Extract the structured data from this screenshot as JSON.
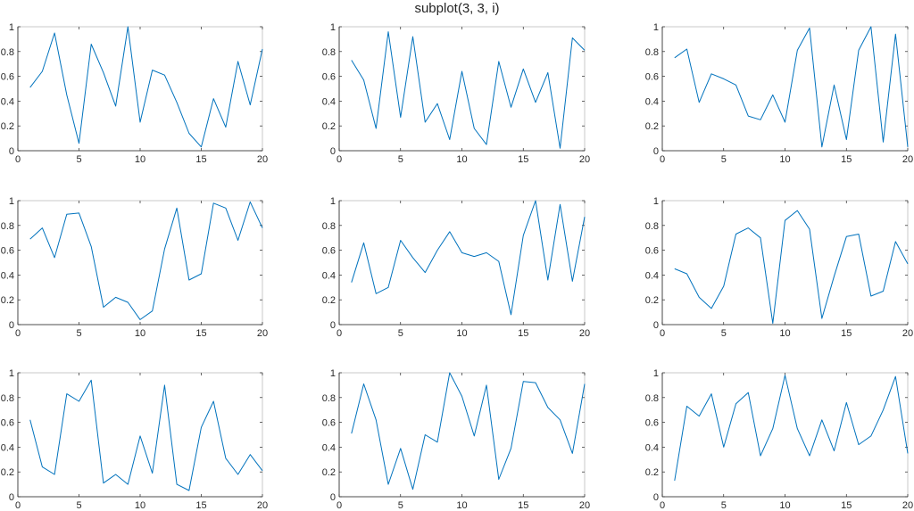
{
  "figure": {
    "title": "subplot(3, 3, i)",
    "line_color": "#0072BD",
    "axes_color": "#262626",
    "background": "#ffffff"
  },
  "chart_data": [
    {
      "type": "line",
      "title": "",
      "position": [
        1,
        1
      ],
      "xlabel": "",
      "ylabel": "",
      "xlim": [
        0,
        20
      ],
      "ylim": [
        0,
        1
      ],
      "xticks": [
        0,
        5,
        10,
        15,
        20
      ],
      "yticks": [
        0,
        0.2,
        0.4,
        0.6,
        0.8,
        1
      ],
      "grid": false,
      "x": [
        1,
        2,
        3,
        4,
        5,
        6,
        7,
        8,
        9,
        10,
        11,
        12,
        13,
        14,
        15,
        16,
        17,
        18,
        19,
        20
      ],
      "values": [
        0.51,
        0.64,
        0.95,
        0.45,
        0.06,
        0.86,
        0.63,
        0.36,
        1.0,
        0.23,
        0.65,
        0.61,
        0.39,
        0.14,
        0.03,
        0.42,
        0.19,
        0.72,
        0.37,
        0.82
      ]
    },
    {
      "type": "line",
      "title": "",
      "position": [
        1,
        2
      ],
      "xlabel": "",
      "ylabel": "",
      "xlim": [
        0,
        20
      ],
      "ylim": [
        0,
        1
      ],
      "xticks": [
        0,
        5,
        10,
        15,
        20
      ],
      "yticks": [
        0,
        0.2,
        0.4,
        0.6,
        0.8,
        1
      ],
      "grid": false,
      "x": [
        1,
        2,
        3,
        4,
        5,
        6,
        7,
        8,
        9,
        10,
        11,
        12,
        13,
        14,
        15,
        16,
        17,
        18,
        19,
        20
      ],
      "values": [
        0.73,
        0.57,
        0.18,
        0.96,
        0.27,
        0.92,
        0.23,
        0.38,
        0.09,
        0.64,
        0.18,
        0.05,
        0.72,
        0.35,
        0.66,
        0.39,
        0.63,
        0.02,
        0.91,
        0.81
      ]
    },
    {
      "type": "line",
      "title": "",
      "position": [
        1,
        3
      ],
      "xlabel": "",
      "ylabel": "",
      "xlim": [
        0,
        20
      ],
      "ylim": [
        0,
        1
      ],
      "xticks": [
        0,
        5,
        10,
        15,
        20
      ],
      "yticks": [
        0,
        0.2,
        0.4,
        0.6,
        0.8,
        1
      ],
      "grid": false,
      "x": [
        1,
        2,
        3,
        4,
        5,
        6,
        7,
        8,
        9,
        10,
        11,
        12,
        13,
        14,
        15,
        16,
        17,
        18,
        19,
        20
      ],
      "values": [
        0.75,
        0.82,
        0.39,
        0.62,
        0.58,
        0.53,
        0.28,
        0.25,
        0.45,
        0.23,
        0.81,
        0.99,
        0.03,
        0.53,
        0.09,
        0.81,
        1.0,
        0.07,
        0.94,
        0.03
      ]
    },
    {
      "type": "line",
      "title": "",
      "position": [
        2,
        1
      ],
      "xlabel": "",
      "ylabel": "",
      "xlim": [
        0,
        20
      ],
      "ylim": [
        0,
        1
      ],
      "xticks": [
        0,
        5,
        10,
        15,
        20
      ],
      "yticks": [
        0,
        0.2,
        0.4,
        0.6,
        0.8,
        1
      ],
      "grid": false,
      "x": [
        1,
        2,
        3,
        4,
        5,
        6,
        7,
        8,
        9,
        10,
        11,
        12,
        13,
        14,
        15,
        16,
        17,
        18,
        19,
        20
      ],
      "values": [
        0.69,
        0.78,
        0.54,
        0.89,
        0.9,
        0.63,
        0.14,
        0.22,
        0.18,
        0.04,
        0.11,
        0.61,
        0.94,
        0.36,
        0.41,
        0.98,
        0.94,
        0.68,
        0.99,
        0.78
      ]
    },
    {
      "type": "line",
      "title": "",
      "position": [
        2,
        2
      ],
      "xlabel": "",
      "ylabel": "",
      "xlim": [
        0,
        20
      ],
      "ylim": [
        0,
        1
      ],
      "xticks": [
        0,
        5,
        10,
        15,
        20
      ],
      "yticks": [
        0,
        0.2,
        0.4,
        0.6,
        0.8,
        1
      ],
      "grid": false,
      "x": [
        1,
        2,
        3,
        4,
        5,
        6,
        7,
        8,
        9,
        10,
        11,
        12,
        13,
        14,
        15,
        16,
        17,
        18,
        19,
        20
      ],
      "values": [
        0.34,
        0.66,
        0.25,
        0.3,
        0.68,
        0.54,
        0.42,
        0.6,
        0.75,
        0.58,
        0.55,
        0.58,
        0.51,
        0.08,
        0.72,
        1.0,
        0.36,
        0.97,
        0.35,
        0.87
      ]
    },
    {
      "type": "line",
      "title": "",
      "position": [
        2,
        3
      ],
      "xlabel": "",
      "ylabel": "",
      "xlim": [
        0,
        20
      ],
      "ylim": [
        0,
        1
      ],
      "xticks": [
        0,
        5,
        10,
        15,
        20
      ],
      "yticks": [
        0,
        0.2,
        0.4,
        0.6,
        0.8,
        1
      ],
      "grid": false,
      "x": [
        1,
        2,
        3,
        4,
        5,
        6,
        7,
        8,
        9,
        10,
        11,
        12,
        13,
        14,
        15,
        16,
        17,
        18,
        19,
        20
      ],
      "values": [
        0.45,
        0.41,
        0.22,
        0.13,
        0.31,
        0.73,
        0.78,
        0.7,
        0.01,
        0.84,
        0.92,
        0.77,
        0.05,
        0.39,
        0.71,
        0.73,
        0.23,
        0.27,
        0.67,
        0.49
      ]
    },
    {
      "type": "line",
      "title": "",
      "position": [
        3,
        1
      ],
      "xlabel": "",
      "ylabel": "",
      "xlim": [
        0,
        20
      ],
      "ylim": [
        0,
        1
      ],
      "xticks": [
        0,
        5,
        10,
        15,
        20
      ],
      "yticks": [
        0,
        0.2,
        0.4,
        0.6,
        0.8,
        1
      ],
      "grid": false,
      "x": [
        1,
        2,
        3,
        4,
        5,
        6,
        7,
        8,
        9,
        10,
        11,
        12,
        13,
        14,
        15,
        16,
        17,
        18,
        19,
        20
      ],
      "values": [
        0.62,
        0.24,
        0.18,
        0.83,
        0.77,
        0.94,
        0.11,
        0.18,
        0.1,
        0.49,
        0.19,
        0.9,
        0.1,
        0.05,
        0.56,
        0.77,
        0.31,
        0.18,
        0.34,
        0.21
      ]
    },
    {
      "type": "line",
      "title": "",
      "position": [
        3,
        2
      ],
      "xlabel": "",
      "ylabel": "",
      "xlim": [
        0,
        20
      ],
      "ylim": [
        0,
        1
      ],
      "xticks": [
        0,
        5,
        10,
        15,
        20
      ],
      "yticks": [
        0,
        0.2,
        0.4,
        0.6,
        0.8,
        1
      ],
      "grid": false,
      "x": [
        1,
        2,
        3,
        4,
        5,
        6,
        7,
        8,
        9,
        10,
        11,
        12,
        13,
        14,
        15,
        16,
        17,
        18,
        19,
        20
      ],
      "values": [
        0.51,
        0.91,
        0.62,
        0.1,
        0.39,
        0.06,
        0.5,
        0.44,
        1.0,
        0.81,
        0.49,
        0.9,
        0.14,
        0.39,
        0.93,
        0.92,
        0.72,
        0.62,
        0.35,
        0.91
      ]
    },
    {
      "type": "line",
      "title": "",
      "position": [
        3,
        3
      ],
      "xlabel": "",
      "ylabel": "",
      "xlim": [
        0,
        20
      ],
      "ylim": [
        0,
        1
      ],
      "xticks": [
        0,
        5,
        10,
        15,
        20
      ],
      "yticks": [
        0,
        0.2,
        0.4,
        0.6,
        0.8,
        1
      ],
      "grid": false,
      "x": [
        1,
        2,
        3,
        4,
        5,
        6,
        7,
        8,
        9,
        10,
        11,
        12,
        13,
        14,
        15,
        16,
        17,
        18,
        19,
        20
      ],
      "values": [
        0.13,
        0.73,
        0.65,
        0.83,
        0.4,
        0.75,
        0.84,
        0.33,
        0.55,
        0.98,
        0.55,
        0.33,
        0.62,
        0.37,
        0.76,
        0.42,
        0.49,
        0.7,
        0.97,
        0.35
      ]
    }
  ]
}
